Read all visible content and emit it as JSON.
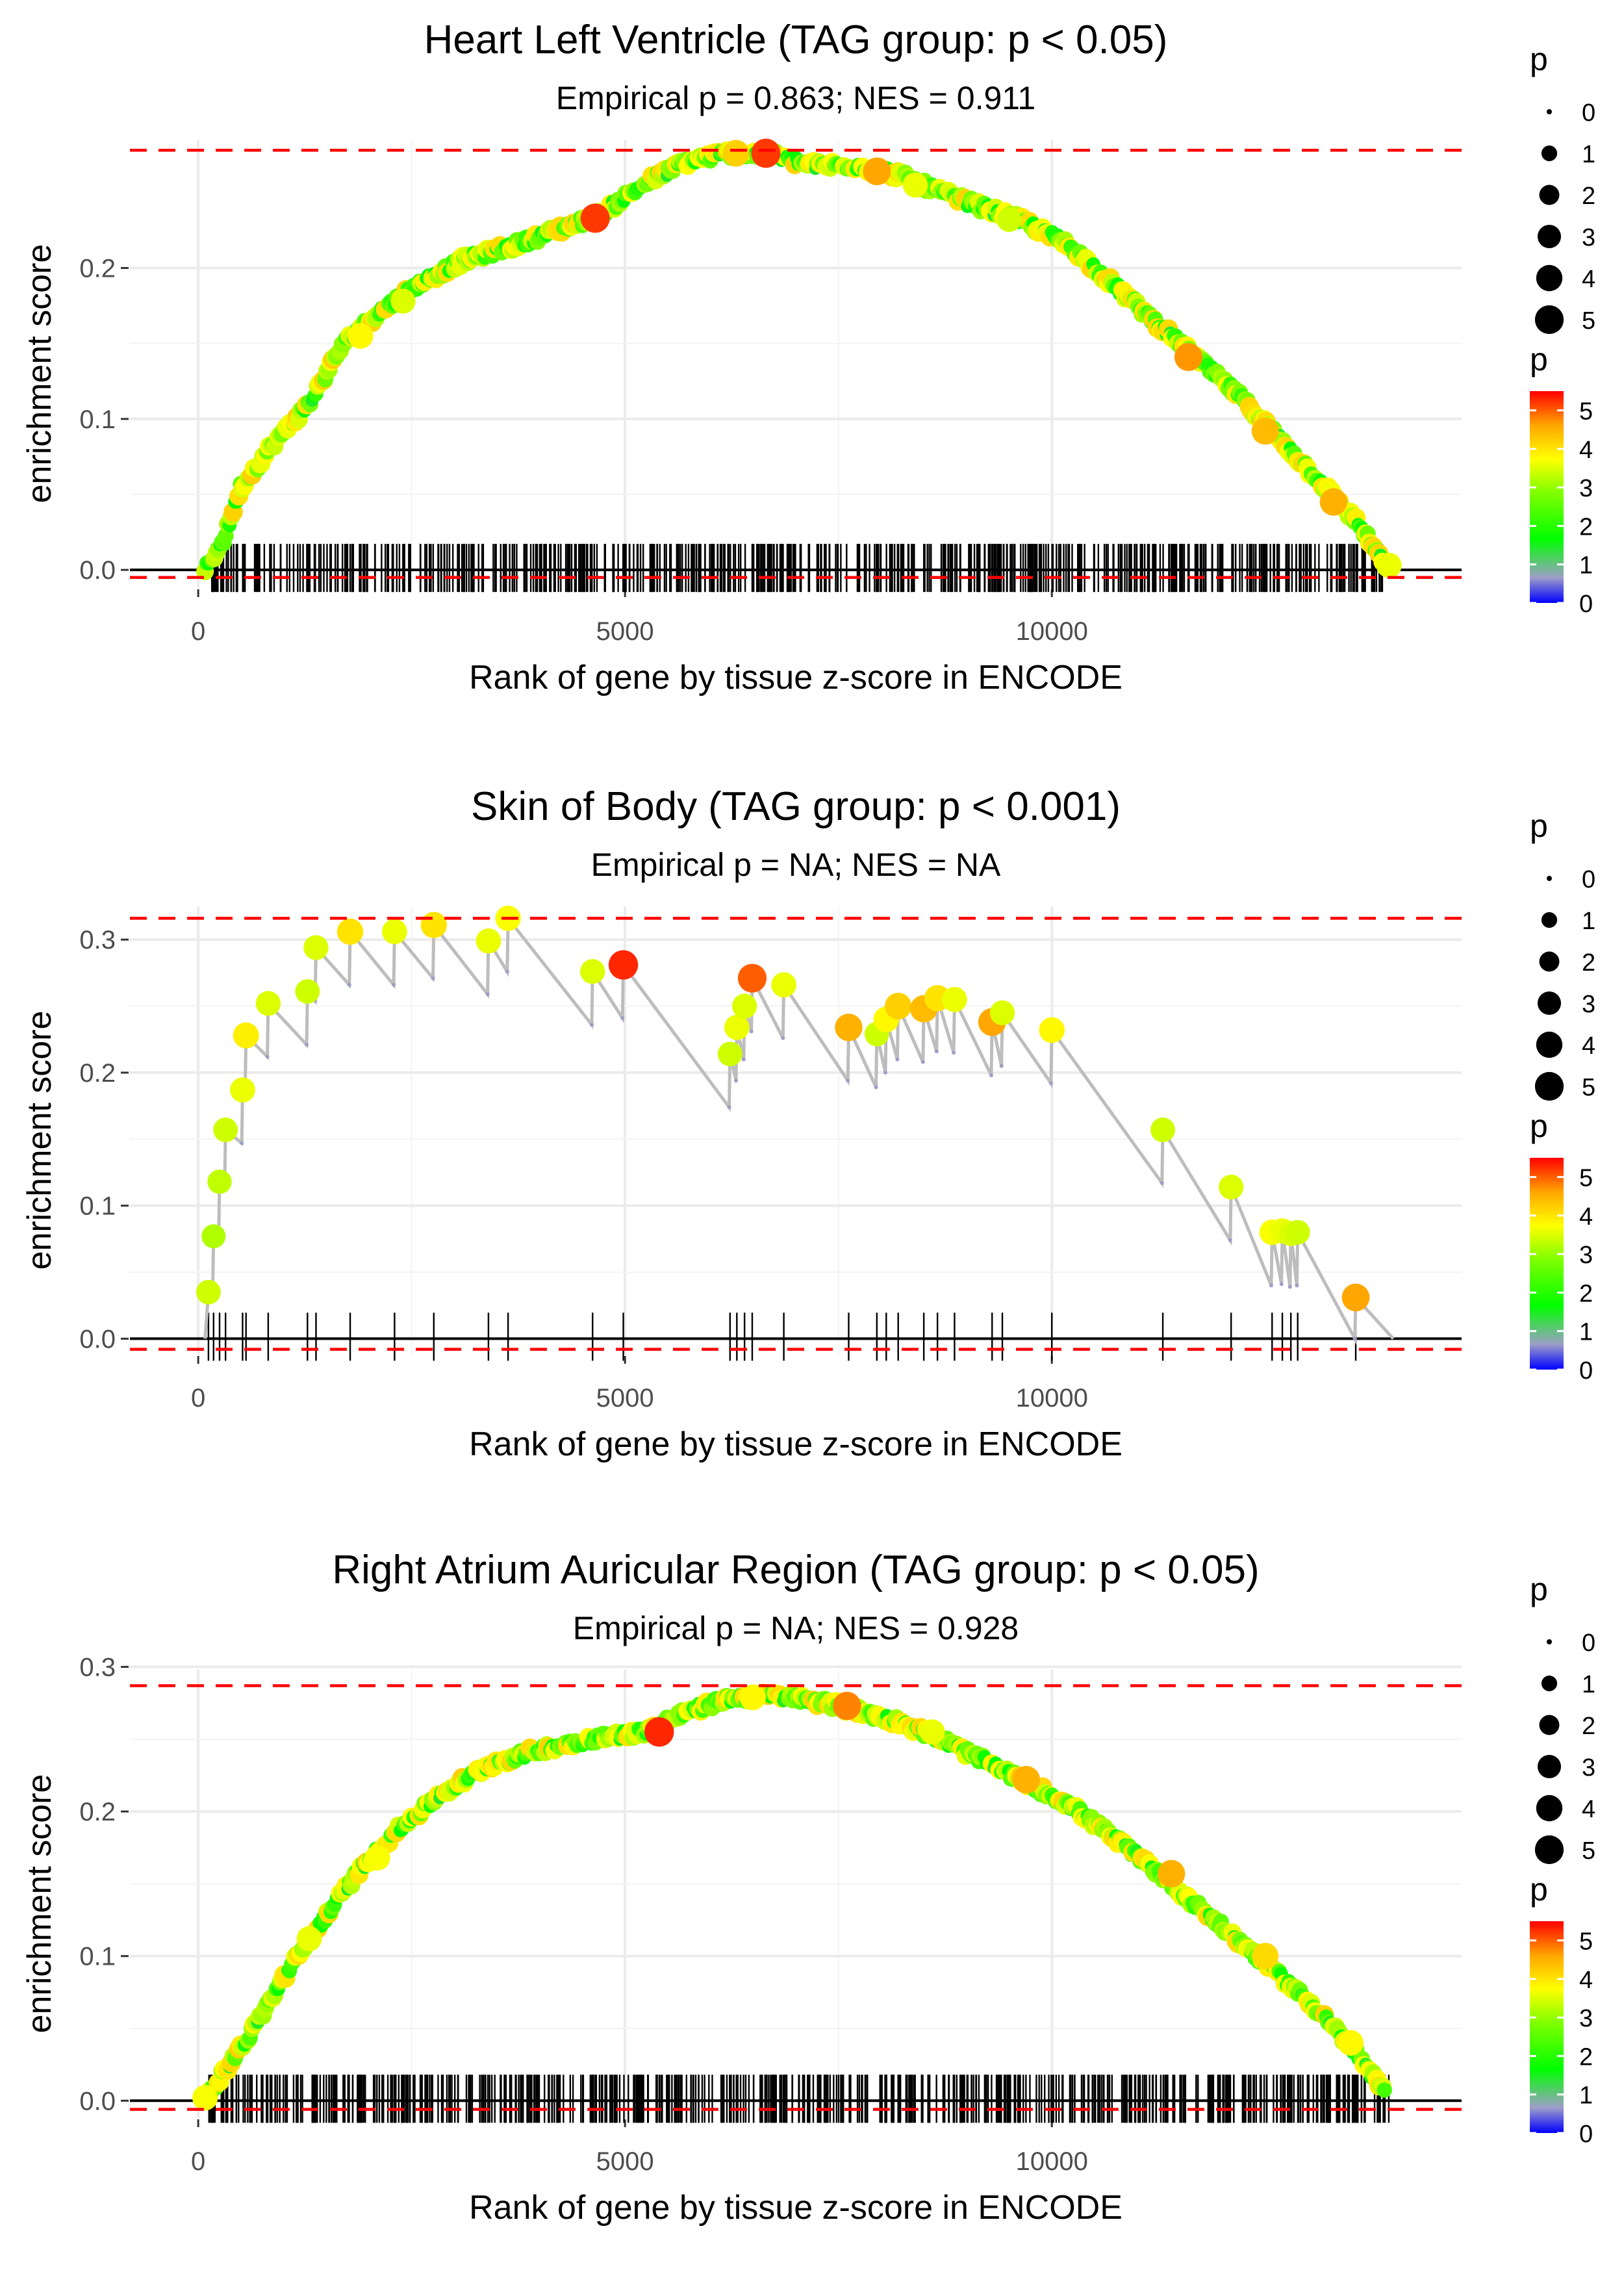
{
  "colors": {
    "reference_line": "#ff0000",
    "es_line": "#bdbdbd",
    "gradient": [
      "#0000ff",
      "#9e9ec8",
      "#00ff00",
      "#7fff00",
      "#ffff00",
      "#ffa500",
      "#ff0000"
    ]
  },
  "chart_data": [
    {
      "type": "scatter",
      "title": "Heart Left Ventricle (TAG group: p < 0.05)",
      "subtitle": "Empirical p = 0.863; NES = 0.911",
      "xlabel": "Rank of gene by tissue z-score in ENCODE",
      "ylabel": "enrichment score",
      "xlim": [
        -800,
        14800
      ],
      "ylim": [
        -0.012,
        0.285
      ],
      "x_ticks": [
        0,
        5000,
        10000
      ],
      "x_tick_labels": [
        "0",
        "5000",
        "10000"
      ],
      "y_ticks": [
        0.0,
        0.1,
        0.2
      ],
      "y_tick_labels": [
        "0.0",
        "0.1",
        "0.2"
      ],
      "ref_lines": [
        0.278,
        -0.005
      ],
      "curve": [
        [
          80,
          0
        ],
        [
          300,
          0.02
        ],
        [
          500,
          0.055
        ],
        [
          900,
          0.085
        ],
        [
          1300,
          0.11
        ],
        [
          1700,
          0.15
        ],
        [
          2100,
          0.17
        ],
        [
          2600,
          0.19
        ],
        [
          3100,
          0.205
        ],
        [
          3700,
          0.215
        ],
        [
          4200,
          0.225
        ],
        [
          4700,
          0.235
        ],
        [
          5200,
          0.255
        ],
        [
          5700,
          0.27
        ],
        [
          6200,
          0.276
        ],
        [
          6700,
          0.275
        ],
        [
          7200,
          0.268
        ],
        [
          7700,
          0.268
        ],
        [
          8200,
          0.262
        ],
        [
          8700,
          0.25
        ],
        [
          9200,
          0.24
        ],
        [
          9700,
          0.23
        ],
        [
          10200,
          0.215
        ],
        [
          10700,
          0.19
        ],
        [
          11200,
          0.165
        ],
        [
          11700,
          0.14
        ],
        [
          12200,
          0.115
        ],
        [
          12700,
          0.085
        ],
        [
          13200,
          0.055
        ],
        [
          13600,
          0.03
        ],
        [
          13900,
          0.003
        ]
      ],
      "rug_count": 620,
      "rug_range": [
        100,
        13900
      ],
      "highlight_points": [
        {
          "x": 4650,
          "y": 0.233,
          "p": 5.2
        },
        {
          "x": 6650,
          "y": 0.276,
          "p": 5.2
        },
        {
          "x": 6300,
          "y": 0.276,
          "p": 4.2
        },
        {
          "x": 7950,
          "y": 0.264,
          "p": 4.6
        },
        {
          "x": 11600,
          "y": 0.141,
          "p": 4.7
        },
        {
          "x": 12500,
          "y": 0.092,
          "p": 4.4
        },
        {
          "x": 13300,
          "y": 0.045,
          "p": 4.5
        },
        {
          "x": 1900,
          "y": 0.155,
          "p": 3.8
        },
        {
          "x": 2400,
          "y": 0.178,
          "p": 3.5
        },
        {
          "x": 8400,
          "y": 0.255,
          "p": 3.6
        },
        {
          "x": 9500,
          "y": 0.232,
          "p": 3.4
        },
        {
          "x": 13950,
          "y": 0.003,
          "p": 3.6
        }
      ],
      "legend_size": {
        "title": "p",
        "labels": [
          "0",
          "1",
          "2",
          "3",
          "4",
          "5"
        ]
      },
      "legend_color": {
        "title": "p",
        "labels": [
          "0",
          "1",
          "2",
          "3",
          "4",
          "5"
        ],
        "range": [
          0,
          5.5
        ]
      }
    },
    {
      "type": "scatter",
      "title": "Skin of Body (TAG group: p < 0.001)",
      "subtitle": "Empirical p = NA; NES = NA",
      "xlabel": "Rank of gene by tissue z-score in ENCODE",
      "ylabel": "enrichment score",
      "xlim": [
        -800,
        14800
      ],
      "ylim": [
        -0.012,
        0.325
      ],
      "x_ticks": [
        0,
        5000,
        10000
      ],
      "x_tick_labels": [
        "0",
        "5000",
        "10000"
      ],
      "y_ticks": [
        0.0,
        0.1,
        0.2,
        0.3
      ],
      "y_tick_labels": [
        "0.0",
        "0.1",
        "0.2",
        "0.3"
      ],
      "ref_lines": [
        0.316,
        -0.008
      ],
      "hits": [
        {
          "x": 120,
          "y": 0.035,
          "p": 3.4
        },
        {
          "x": 180,
          "y": 0.077,
          "p": 3.2
        },
        {
          "x": 250,
          "y": 0.118,
          "p": 3.3
        },
        {
          "x": 320,
          "y": 0.157,
          "p": 3.4
        },
        {
          "x": 520,
          "y": 0.187,
          "p": 3.6
        },
        {
          "x": 560,
          "y": 0.228,
          "p": 3.9
        },
        {
          "x": 820,
          "y": 0.252,
          "p": 3.5
        },
        {
          "x": 1280,
          "y": 0.261,
          "p": 3.4
        },
        {
          "x": 1380,
          "y": 0.294,
          "p": 3.5
        },
        {
          "x": 1780,
          "y": 0.306,
          "p": 4.0
        },
        {
          "x": 2300,
          "y": 0.306,
          "p": 3.6
        },
        {
          "x": 2760,
          "y": 0.311,
          "p": 4.0
        },
        {
          "x": 3400,
          "y": 0.299,
          "p": 3.6
        },
        {
          "x": 3630,
          "y": 0.316,
          "p": 3.7
        },
        {
          "x": 4620,
          "y": 0.276,
          "p": 3.5
        },
        {
          "x": 4980,
          "y": 0.281,
          "p": 5.3
        },
        {
          "x": 6230,
          "y": 0.214,
          "p": 3.4
        },
        {
          "x": 6310,
          "y": 0.234,
          "p": 3.6
        },
        {
          "x": 6400,
          "y": 0.25,
          "p": 3.5
        },
        {
          "x": 6490,
          "y": 0.271,
          "p": 5.0
        },
        {
          "x": 6860,
          "y": 0.266,
          "p": 3.6
        },
        {
          "x": 7620,
          "y": 0.234,
          "p": 4.5
        },
        {
          "x": 7950,
          "y": 0.229,
          "p": 3.4
        },
        {
          "x": 8060,
          "y": 0.24,
          "p": 3.8
        },
        {
          "x": 8200,
          "y": 0.25,
          "p": 4.2
        },
        {
          "x": 8500,
          "y": 0.248,
          "p": 4.4
        },
        {
          "x": 8660,
          "y": 0.256,
          "p": 4.0
        },
        {
          "x": 8860,
          "y": 0.255,
          "p": 3.6
        },
        {
          "x": 9300,
          "y": 0.238,
          "p": 4.6
        },
        {
          "x": 9420,
          "y": 0.245,
          "p": 3.5
        },
        {
          "x": 10000,
          "y": 0.232,
          "p": 3.8
        },
        {
          "x": 11300,
          "y": 0.157,
          "p": 3.4
        },
        {
          "x": 12100,
          "y": 0.114,
          "p": 3.5
        },
        {
          "x": 12580,
          "y": 0.08,
          "p": 3.7
        },
        {
          "x": 12700,
          "y": 0.081,
          "p": 3.6
        },
        {
          "x": 12800,
          "y": 0.079,
          "p": 3.5
        },
        {
          "x": 12880,
          "y": 0.08,
          "p": 3.4
        },
        {
          "x": 13560,
          "y": 0.031,
          "p": 4.6
        }
      ],
      "end_point": {
        "x": 14000,
        "y": 0.0
      },
      "legend_size": {
        "title": "p",
        "labels": [
          "0",
          "1",
          "2",
          "3",
          "4",
          "5"
        ]
      },
      "legend_color": {
        "title": "p",
        "labels": [
          "0",
          "1",
          "2",
          "3",
          "4",
          "5"
        ],
        "range": [
          0,
          5.5
        ]
      }
    },
    {
      "type": "scatter",
      "title": "Right Atrium Auricular Region (TAG group: p < 0.05)",
      "subtitle": "Empirical p = NA; NES = 0.928",
      "xlabel": "Rank of gene by tissue z-score in ENCODE",
      "ylabel": "enrichment score",
      "xlim": [
        -800,
        14800
      ],
      "ylim": [
        -0.012,
        0.298
      ],
      "x_ticks": [
        0,
        5000,
        10000
      ],
      "x_tick_labels": [
        "0",
        "5000",
        "10000"
      ],
      "y_ticks": [
        0.0,
        0.1,
        0.2,
        0.3
      ],
      "y_tick_labels": [
        "0.0",
        "0.1",
        "0.2",
        "0.3"
      ],
      "ref_lines": [
        0.287,
        -0.006
      ],
      "curve": [
        [
          80,
          0
        ],
        [
          300,
          0.02
        ],
        [
          600,
          0.045
        ],
        [
          1000,
          0.085
        ],
        [
          1400,
          0.12
        ],
        [
          1900,
          0.16
        ],
        [
          2300,
          0.185
        ],
        [
          2800,
          0.21
        ],
        [
          3400,
          0.232
        ],
        [
          4000,
          0.243
        ],
        [
          4600,
          0.25
        ],
        [
          5200,
          0.255
        ],
        [
          5700,
          0.268
        ],
        [
          6200,
          0.278
        ],
        [
          6700,
          0.28
        ],
        [
          7200,
          0.277
        ],
        [
          7700,
          0.27
        ],
        [
          8200,
          0.262
        ],
        [
          8700,
          0.25
        ],
        [
          9200,
          0.235
        ],
        [
          9700,
          0.22
        ],
        [
          10200,
          0.205
        ],
        [
          10700,
          0.183
        ],
        [
          11200,
          0.16
        ],
        [
          11700,
          0.135
        ],
        [
          12200,
          0.11
        ],
        [
          12700,
          0.085
        ],
        [
          13200,
          0.058
        ],
        [
          13600,
          0.03
        ],
        [
          13900,
          0.005
        ]
      ],
      "rug_count": 640,
      "rug_range": [
        100,
        13950
      ],
      "highlight_points": [
        {
          "x": 5400,
          "y": 0.255,
          "p": 5.3
        },
        {
          "x": 7600,
          "y": 0.273,
          "p": 4.8
        },
        {
          "x": 6500,
          "y": 0.279,
          "p": 3.8
        },
        {
          "x": 8600,
          "y": 0.255,
          "p": 3.6
        },
        {
          "x": 9700,
          "y": 0.222,
          "p": 4.5
        },
        {
          "x": 11400,
          "y": 0.157,
          "p": 4.5
        },
        {
          "x": 12500,
          "y": 0.1,
          "p": 4.1
        },
        {
          "x": 13500,
          "y": 0.04,
          "p": 3.8
        },
        {
          "x": 2100,
          "y": 0.168,
          "p": 3.7
        },
        {
          "x": 1300,
          "y": 0.112,
          "p": 3.6
        },
        {
          "x": 80,
          "y": 0.002,
          "p": 3.7
        }
      ],
      "legend_size": {
        "title": "p",
        "labels": [
          "0",
          "1",
          "2",
          "3",
          "4",
          "5"
        ]
      },
      "legend_color": {
        "title": "p",
        "labels": [
          "0",
          "1",
          "2",
          "3",
          "4",
          "5"
        ],
        "range": [
          0,
          5.5
        ]
      }
    }
  ]
}
